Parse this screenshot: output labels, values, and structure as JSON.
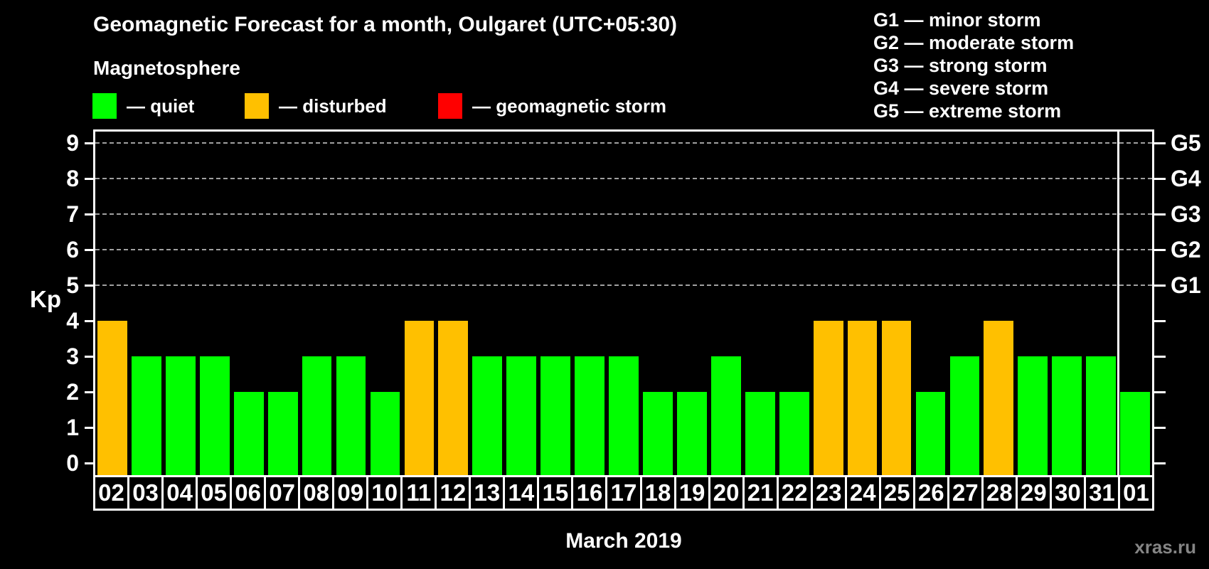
{
  "title": "Geomagnetic Forecast for a month, Oulgaret (UTC+05:30)",
  "subtitle": "Magnetosphere",
  "status_legend": [
    {
      "label": "— quiet",
      "status": "quiet"
    },
    {
      "label": "— disturbed",
      "status": "disturbed"
    },
    {
      "label": "— geomagnetic storm",
      "status": "storm"
    }
  ],
  "g_scale_legend": [
    "G1 — minor storm",
    "G2 — moderate storm",
    "G3 — strong storm",
    "G4 — severe storm",
    "G5 — extreme storm"
  ],
  "watermark": "xras.ru",
  "colors": {
    "quiet": "#00FF00",
    "disturbed": "#FFC000",
    "storm": "#FF0000",
    "grid": "#A0A0A0",
    "axis": "#FFFFFF",
    "background": "#000000"
  },
  "chart_data": {
    "type": "bar",
    "title": "Geomagnetic Forecast for a month, Oulgaret (UTC+05:30)",
    "xlabel": "March 2019",
    "ylabel": "Kp",
    "ylim": [
      0,
      9
    ],
    "grid_on": true,
    "grid_levels": [
      5,
      6,
      7,
      8,
      9
    ],
    "y_ticks": [
      0,
      1,
      2,
      3,
      4,
      5,
      6,
      7,
      8,
      9
    ],
    "right_axis": [
      {
        "label": "G1",
        "level": 5
      },
      {
        "label": "G2",
        "level": 6
      },
      {
        "label": "G3",
        "level": 7
      },
      {
        "label": "G4",
        "level": 8
      },
      {
        "label": "G5",
        "level": 9
      }
    ],
    "legend_entries": [
      "quiet",
      "disturbed",
      "geomagnetic storm"
    ],
    "legend_position": "top",
    "categories": [
      "02",
      "03",
      "04",
      "05",
      "06",
      "07",
      "08",
      "09",
      "10",
      "11",
      "12",
      "13",
      "14",
      "15",
      "16",
      "17",
      "18",
      "19",
      "20",
      "21",
      "22",
      "23",
      "24",
      "25",
      "26",
      "27",
      "28",
      "29",
      "30",
      "31",
      "01"
    ],
    "values": [
      4,
      3,
      3,
      3,
      2,
      2,
      3,
      3,
      2,
      4,
      4,
      3,
      3,
      3,
      3,
      3,
      2,
      2,
      3,
      2,
      2,
      4,
      4,
      4,
      2,
      3,
      4,
      3,
      3,
      3,
      2
    ],
    "statuses": [
      "disturbed",
      "quiet",
      "quiet",
      "quiet",
      "quiet",
      "quiet",
      "quiet",
      "quiet",
      "quiet",
      "disturbed",
      "disturbed",
      "quiet",
      "quiet",
      "quiet",
      "quiet",
      "quiet",
      "quiet",
      "quiet",
      "quiet",
      "quiet",
      "quiet",
      "disturbed",
      "disturbed",
      "disturbed",
      "quiet",
      "quiet",
      "disturbed",
      "quiet",
      "quiet",
      "quiet",
      "quiet"
    ],
    "month_separator_before_index": 30
  }
}
